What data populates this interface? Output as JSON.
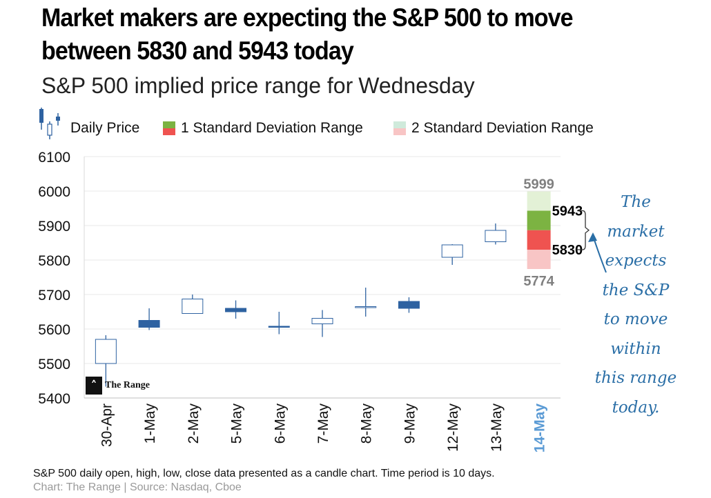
{
  "title": "Market makers are expecting the S&P 500 to move between 5830 and 5943 today",
  "subtitle": "S&P 500 implied price range for",
  "subtitle_day": "Wednesday",
  "legend": {
    "daily_price": "Daily Price",
    "one_sd": "1 Standard Deviation  Range",
    "two_sd": "2 Standard Deviation  Range"
  },
  "chart_data": {
    "type": "candlestick",
    "title": "S&P 500 implied price range for Wednesday",
    "ylim": [
      5400,
      6100
    ],
    "yticks": [
      5400,
      5500,
      5600,
      5700,
      5800,
      5900,
      6000,
      6100
    ],
    "categories": [
      "30-Apr",
      "1-May",
      "2-May",
      "5-May",
      "6-May",
      "7-May",
      "8-May",
      "9-May",
      "12-May",
      "13-May",
      "14-May"
    ],
    "candles": [
      {
        "date": "30-Apr",
        "open": 5500,
        "high": 5582,
        "low": 5433,
        "close": 5570
      },
      {
        "date": "1-May",
        "open": 5625,
        "high": 5660,
        "low": 5597,
        "close": 5605
      },
      {
        "date": "2-May",
        "open": 5645,
        "high": 5700,
        "low": 5645,
        "close": 5687
      },
      {
        "date": "5-May",
        "open": 5660,
        "high": 5683,
        "low": 5630,
        "close": 5650
      },
      {
        "date": "6-May",
        "open": 5608,
        "high": 5650,
        "low": 5585,
        "close": 5606
      },
      {
        "date": "7-May",
        "open": 5615,
        "high": 5655,
        "low": 5577,
        "close": 5631
      },
      {
        "date": "8-May",
        "open": 5663,
        "high": 5720,
        "low": 5636,
        "close": 5665
      },
      {
        "date": "9-May",
        "open": 5680,
        "high": 5692,
        "low": 5647,
        "close": 5660
      },
      {
        "date": "12-May",
        "open": 5808,
        "high": 5846,
        "low": 5786,
        "close": 5844
      },
      {
        "date": "13-May",
        "open": 5853,
        "high": 5906,
        "low": 5845,
        "close": 5886
      }
    ],
    "range_day": "14-May",
    "one_sd_range": [
      5830,
      5943
    ],
    "two_sd_range": [
      5774,
      5999
    ],
    "one_sd_up_color": "#7cb342",
    "one_sd_down_color": "#ef5350",
    "two_sd_up_color": "#e3f1d6",
    "two_sd_down_color": "#f8c5c5",
    "up_candle_color": "#ffffff",
    "down_candle_color": "#2e62a1",
    "candle_border_color": "#2e62a1",
    "highlight_color": "#5b9bd5"
  },
  "range_labels": {
    "upper_2sd": "5999",
    "upper_1sd": "5943",
    "lower_1sd": "5830",
    "lower_2sd": "5774"
  },
  "annotation": [
    "The",
    "market",
    "expects",
    "the S&P",
    "to move",
    "within",
    "this range",
    "today."
  ],
  "footer_note": "S&P 500 daily open, high, low, close data presented as a candle chart. Time period is 10 days.",
  "footer_source": "Chart: The Range | Source: Nasdaq, Cboe",
  "logo_text": "The Range"
}
